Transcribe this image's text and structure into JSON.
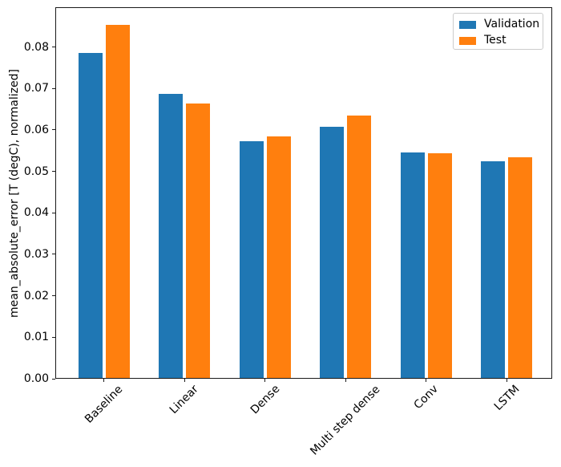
{
  "figure": {
    "background": "#ffffff",
    "spine_color": "#1a1a1a"
  },
  "chart_data": {
    "type": "bar",
    "title": "",
    "xlabel": "",
    "ylabel": "mean_absolute_error [T (degC), normalized]",
    "categories": [
      "Baseline",
      "Linear",
      "Dense",
      "Multi step dense",
      "Conv",
      "LSTM"
    ],
    "series": [
      {
        "name": "Validation",
        "color": "#1f77b4",
        "values": [
          0.0785,
          0.0687,
          0.0573,
          0.0607,
          0.0546,
          0.0524
        ]
      },
      {
        "name": "Test",
        "color": "#ff7f0e",
        "values": [
          0.0853,
          0.0663,
          0.0584,
          0.0634,
          0.0544,
          0.0535
        ]
      }
    ],
    "ylim": [
      0,
      0.0896
    ],
    "yticks": [
      0.0,
      0.01,
      0.02,
      0.03,
      0.04,
      0.05,
      0.06,
      0.07,
      0.08
    ],
    "ytick_labels": [
      "0.00",
      "0.01",
      "0.02",
      "0.03",
      "0.04",
      "0.05",
      "0.06",
      "0.07",
      "0.08"
    ],
    "xtick_rotation": 45,
    "grid": false,
    "legend_position": "upper right"
  }
}
